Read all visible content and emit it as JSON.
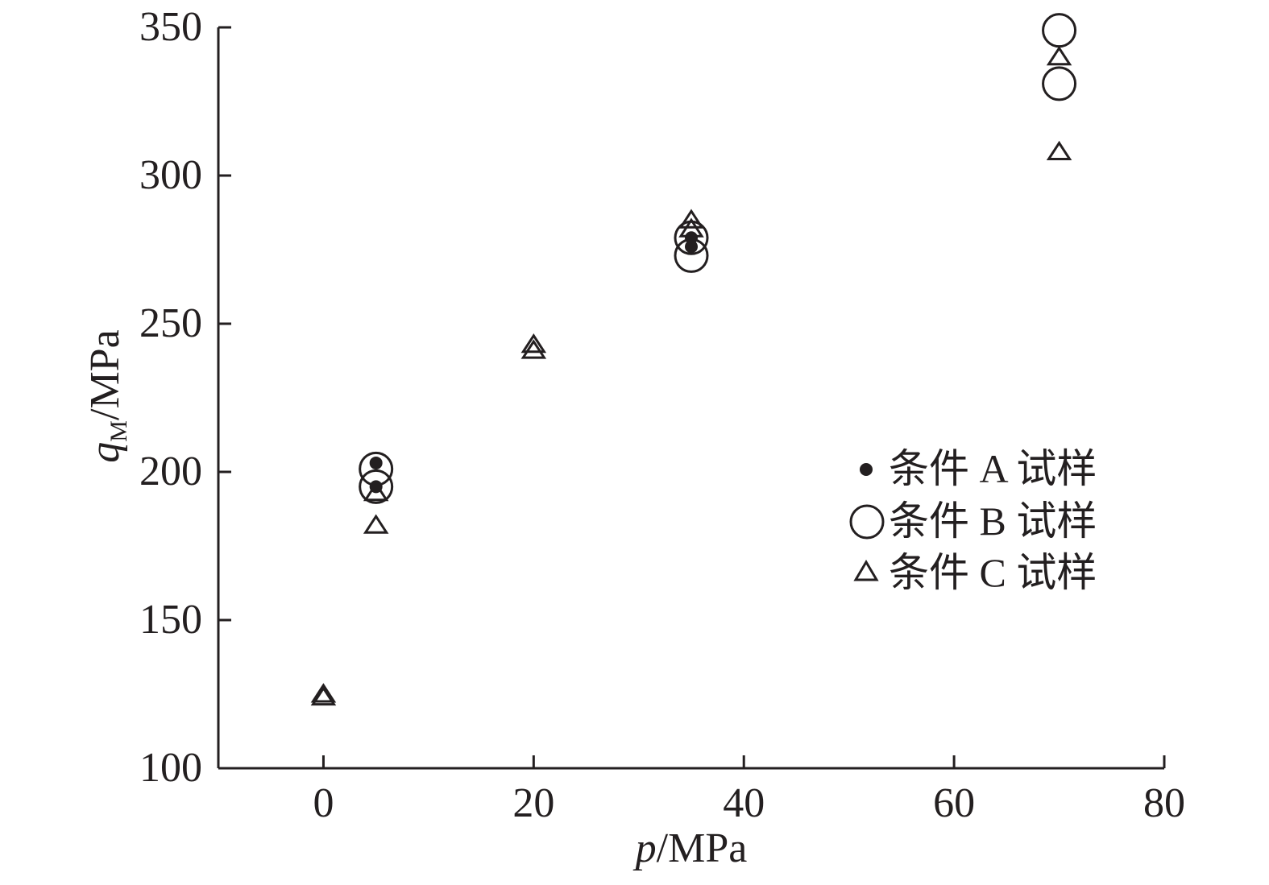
{
  "chart_data": {
    "type": "scatter",
    "title": "",
    "xlabel": {
      "italic": "p",
      "rest": "/MPa"
    },
    "ylabel": {
      "italic": "q",
      "subscript": "M",
      "rest": "/MPa"
    },
    "xlim": [
      -10,
      80
    ],
    "ylim": [
      100,
      350
    ],
    "xticks": [
      0,
      20,
      40,
      60,
      80
    ],
    "yticks": [
      100,
      150,
      200,
      250,
      300,
      350
    ],
    "grid": false,
    "legend_position": "right",
    "series": [
      {
        "name": "条件 A 试样",
        "marker": "filled-dot",
        "points": [
          {
            "x": 5,
            "y": 203
          },
          {
            "x": 5,
            "y": 195
          },
          {
            "x": 35,
            "y": 279
          },
          {
            "x": 35,
            "y": 276
          }
        ]
      },
      {
        "name": "条件 B 试样",
        "marker": "open-circle",
        "points": [
          {
            "x": 5,
            "y": 201
          },
          {
            "x": 5,
            "y": 195
          },
          {
            "x": 35,
            "y": 279
          },
          {
            "x": 35,
            "y": 273
          },
          {
            "x": 70,
            "y": 349
          },
          {
            "x": 70,
            "y": 331
          }
        ]
      },
      {
        "name": "条件 C 试样",
        "marker": "open-triangle",
        "points": [
          {
            "x": 0,
            "y": 125
          },
          {
            "x": 0,
            "y": 124
          },
          {
            "x": 5,
            "y": 193
          },
          {
            "x": 5,
            "y": 182
          },
          {
            "x": 20,
            "y": 243
          },
          {
            "x": 20,
            "y": 241
          },
          {
            "x": 35,
            "y": 285
          },
          {
            "x": 35,
            "y": 282
          },
          {
            "x": 70,
            "y": 340
          },
          {
            "x": 70,
            "y": 308
          }
        ]
      }
    ]
  }
}
